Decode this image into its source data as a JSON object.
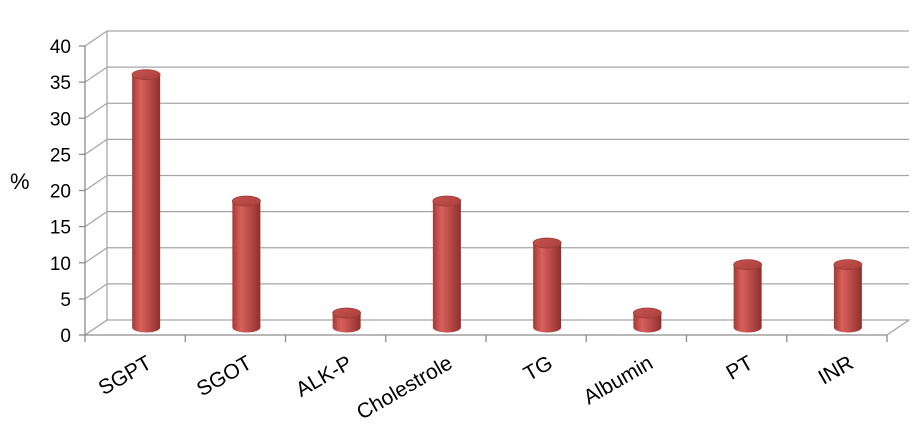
{
  "chart_data": {
    "type": "bar",
    "style": "3d-cylinder",
    "categories": [
      "SGPT",
      "SGOT",
      "ALK-P",
      "Cholestrole",
      "TG",
      "Albumin",
      "PT",
      "INR"
    ],
    "values": [
      35,
      17.5,
      2,
      17.5,
      11.7,
      2,
      8.7,
      8.7
    ],
    "title": "",
    "xlabel": "",
    "ylabel": "%",
    "ylim": [
      0,
      40
    ],
    "yticks": [
      0,
      5,
      10,
      15,
      20,
      25,
      30,
      35,
      40
    ],
    "grid": true,
    "legend": "none",
    "bar_color": "#c0504d"
  }
}
